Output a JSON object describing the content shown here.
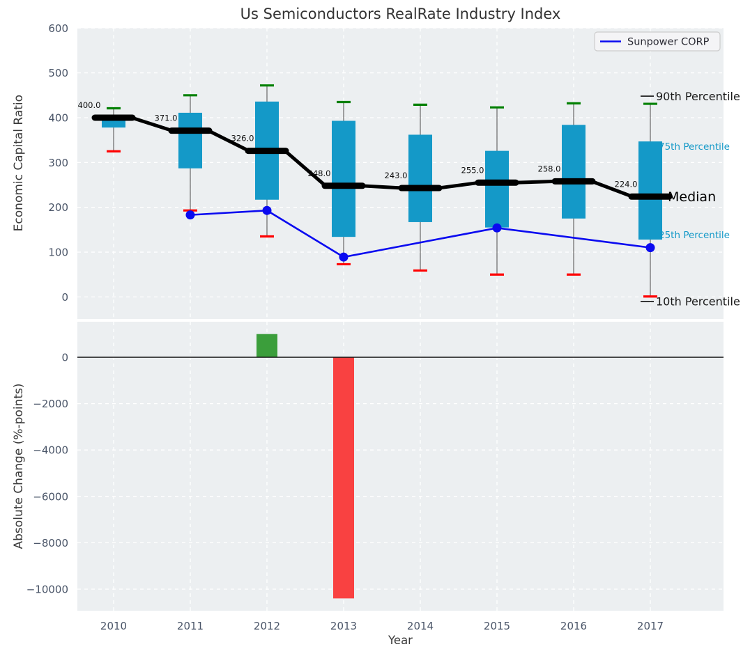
{
  "figure": {
    "title": "Us Semiconductors RealRate Industry Index",
    "xlabel": "Year"
  },
  "style": {
    "plot_bg": "#eceff1",
    "grid_color": "#ffffff",
    "tick_color": "#4a5568",
    "title_color": "#333333",
    "axis_title_color": "#3a3a3a",
    "box_color": "#1499c8",
    "whisker_color": "#666666",
    "median_color": "#000000",
    "p90_cap_color": "#008000",
    "p10_cap_color": "#ff0000",
    "line_color": "#0a0af0",
    "legend_bg": "#f4f4f6",
    "legend_border": "#cccccc"
  },
  "chart_data": [
    {
      "type": "box-whisker-with-median-line",
      "title": "Us Semiconductors RealRate Industry Index",
      "ylabel": "Economic Capital Ratio",
      "xlabel": "Year",
      "categories": [
        "2010",
        "2011",
        "2012",
        "2013",
        "2014",
        "2015",
        "2016",
        "2017"
      ],
      "ylim": [
        -49,
        600
      ],
      "yticks": [
        600,
        500,
        400,
        300,
        200,
        100,
        0
      ],
      "ytick_labels": [
        "600",
        "500",
        "400",
        "300",
        "200",
        "100",
        "0"
      ],
      "grid": true,
      "series": [
        {
          "name": "Median",
          "values": [
            400,
            371,
            326,
            248,
            243,
            255,
            258,
            224
          ],
          "point_labels": [
            "400.0",
            "371.0",
            "326.0",
            "248.0",
            "243.0",
            "255.0",
            "258.0",
            "224.0"
          ]
        },
        {
          "name": "75th Percentile",
          "values": [
            401,
            411,
            436,
            393,
            362,
            326,
            384,
            347
          ]
        },
        {
          "name": "25th Percentile",
          "values": [
            378,
            287,
            217,
            134,
            167,
            155,
            175,
            128
          ]
        },
        {
          "name": "90th Percentile",
          "values": [
            421,
            450,
            472,
            435,
            429,
            423,
            432,
            431
          ]
        },
        {
          "name": "10th Percentile",
          "values": [
            325,
            193,
            135,
            73,
            59,
            50,
            50,
            1
          ]
        },
        {
          "name": "Sunpower CORP",
          "x": [
            "2011",
            "2012",
            "2013",
            "2015",
            "2017"
          ],
          "values": [
            183,
            193,
            89,
            154,
            110
          ]
        }
      ],
      "legend": {
        "position": "upper right",
        "entries": [
          {
            "label": "Sunpower CORP"
          }
        ]
      },
      "annotations": [
        {
          "label": "90th Percentile",
          "color": "#1a1a1a",
          "fontsize": 16,
          "x": 941,
          "y_value": 448,
          "leader": true
        },
        {
          "label": "75th Percentile",
          "color": "#1499c8",
          "fontsize": 13.5,
          "x": 945,
          "y_value": 336,
          "leader": false
        },
        {
          "label": "Median",
          "color": "#000000",
          "fontsize": 19,
          "x": 958,
          "y_value": 224,
          "leader": false
        },
        {
          "label": "25th Percentile",
          "color": "#1499c8",
          "fontsize": 13.5,
          "x": 945,
          "y_value": 139,
          "leader": false
        },
        {
          "label": "10th Percentile",
          "color": "#1a1a1a",
          "fontsize": 16,
          "x": 941,
          "y_value": -10,
          "leader": true
        }
      ]
    },
    {
      "type": "bar",
      "ylabel": "Absolute Change (%-points)",
      "xlabel": "Year",
      "categories": [
        "2010",
        "2011",
        "2012",
        "2013",
        "2014",
        "2015",
        "2016",
        "2017"
      ],
      "values": [
        0,
        0,
        1000,
        -10400,
        0,
        0,
        0,
        0
      ],
      "ylim": [
        -10930,
        1530
      ],
      "yticks": [
        0,
        -2000,
        -4000,
        -6000,
        -8000,
        -10000
      ],
      "ytick_labels": [
        "0",
        "−2000",
        "−4000",
        "−6000",
        "−8000",
        "−10000"
      ],
      "grid": true,
      "zero_line": true,
      "positive_color": "#3b9e3b",
      "negative_color": "#f94141"
    }
  ]
}
